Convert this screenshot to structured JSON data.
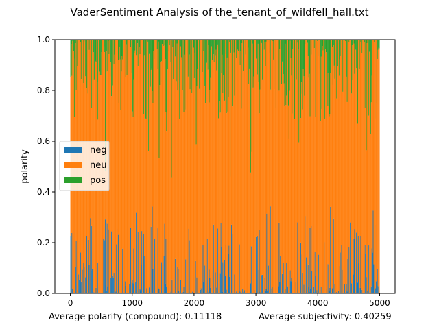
{
  "chart_data": {
    "type": "bar",
    "title": "VaderSentiment Analysis of the_tenant_of_wildfell_hall.txt",
    "xlabel": "",
    "ylabel": "polarity",
    "xlim": [
      -250,
      5250
    ],
    "ylim": [
      0,
      1
    ],
    "xticks": [
      "0",
      "1000",
      "2000",
      "3000",
      "4000",
      "5000"
    ],
    "yticks": [
      "0.0",
      "0.2",
      "0.4",
      "0.6",
      "0.8",
      "1.0"
    ],
    "stacked": true,
    "legend_position": "center-left",
    "grid": false,
    "bar_count": 5000,
    "bars_shown_approx": "~1 bar per sentence index 0–4999, neg + neu + pos = 1",
    "series": [
      {
        "name": "neg",
        "color": "#1f77b4",
        "typical_range": [
          0.0,
          0.2
        ],
        "peak_values": [
          0.36,
          0.38,
          0.32,
          0.33
        ]
      },
      {
        "name": "neu",
        "color": "#ff7f0e",
        "typical_range": [
          0.55,
          1.0
        ]
      },
      {
        "name": "pos",
        "color": "#2ca02c",
        "typical_range": [
          0.0,
          0.35
        ],
        "peak_values": [
          0.55,
          0.45,
          0.48
        ]
      }
    ]
  },
  "footer": {
    "left": "Average polarity (compound): 0.11118",
    "right": "Average subjectivity: 0.40259"
  }
}
